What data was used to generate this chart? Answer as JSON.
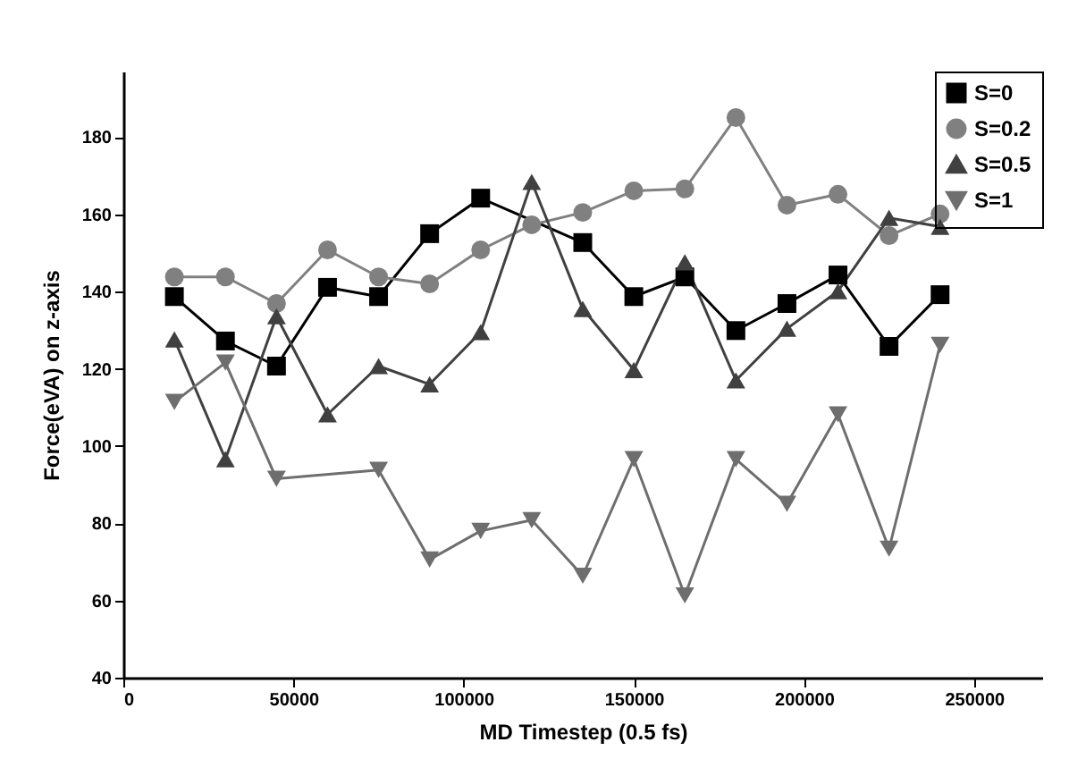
{
  "chart_data": {
    "type": "line",
    "xlabel": "MD Timestep (0.5 fs)",
    "ylabel": "Force(eVA) on z-axis",
    "xlim": [
      0,
      270000
    ],
    "ylim": [
      40,
      197
    ],
    "xticks": [
      0,
      50000,
      100000,
      150000,
      200000,
      250000
    ],
    "yticks": [
      40,
      60,
      80,
      100,
      120,
      140,
      160,
      180
    ],
    "legend": "top right",
    "grid": false,
    "x": [
      15000,
      30000,
      45000,
      60000,
      75000,
      90000,
      105000,
      120000,
      135000,
      150000,
      165000,
      180000,
      195000,
      210000,
      225000,
      240000
    ],
    "series": [
      {
        "name": "S=0",
        "color": "#000000",
        "marker": "square",
        "x": [
          15000,
          30000,
          45000,
          60000,
          75000,
          90000,
          105000,
          135000,
          150000,
          165000,
          180000,
          195000,
          210000,
          225000,
          240000
        ],
        "values": [
          138.7,
          127.2,
          120.7,
          141.1,
          138.7,
          155.0,
          164.2,
          152.7,
          138.7,
          143.8,
          129.9,
          136.9,
          144.3,
          125.8,
          139.2
        ]
      },
      {
        "name": "S=0.2",
        "color": "#808080",
        "marker": "circle",
        "values": [
          143.8,
          143.8,
          136.9,
          150.8,
          143.8,
          142.0,
          150.8,
          157.3,
          160.5,
          166.1,
          166.6,
          185.1,
          162.4,
          165.2,
          154.5,
          160.1
        ]
      },
      {
        "name": "S=0.5",
        "color": "#404040",
        "marker": "triangle",
        "values": [
          127.6,
          96.6,
          133.6,
          108.2,
          120.7,
          116.0,
          129.5,
          168.4,
          135.5,
          119.7,
          147.6,
          117.0,
          130.4,
          140.1,
          159.1,
          156.8
        ]
      },
      {
        "name": "S=1",
        "color": "#6e6e6e",
        "marker": "triangle-down",
        "x": [
          15000,
          30000,
          45000,
          75000,
          90000,
          105000,
          120000,
          135000,
          150000,
          165000,
          180000,
          195000,
          210000,
          225000,
          240000
        ],
        "values": [
          111.4,
          121.6,
          91.5,
          93.8,
          70.6,
          78.0,
          80.8,
          66.4,
          96.6,
          61.3,
          96.6,
          85.0,
          108.2,
          73.4,
          126.2
        ]
      }
    ]
  }
}
